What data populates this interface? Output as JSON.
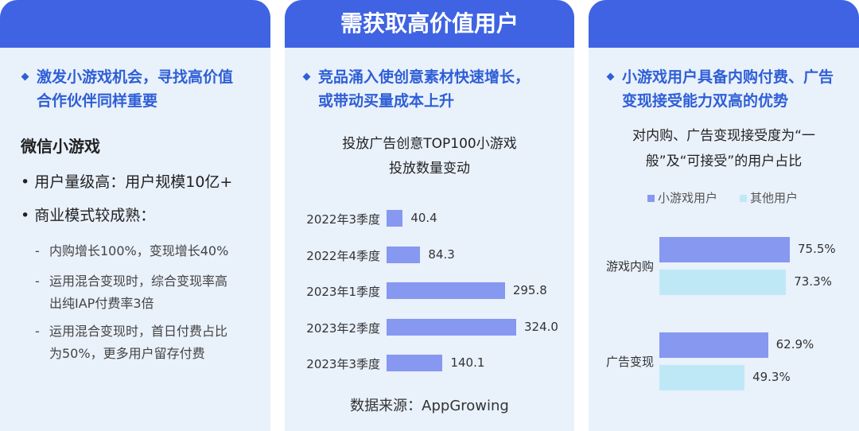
{
  "colors": {
    "header": "#3f63e3",
    "panel_bg": "#e9f1fb",
    "accent_text": "#2f5fd6",
    "bar_mini": "#8798f0",
    "bar_other": "#bfe8f7"
  },
  "left": {
    "highlight_line1": "激发小游戏机会，寻找高价值",
    "highlight_line2": "合作伙伴同样重要",
    "heading": "微信小游戏",
    "bullet1": "用户量级高：用户规模10亿+",
    "bullet2": "商业模式较成熟：",
    "sub1": "内购增长100%，变现增长40%",
    "sub2_line1": "运用混合变现时，综合变现率高",
    "sub2_line2": "出纯IAP付费率3倍",
    "sub3_line1": "运用混合变现时，首日付费占比",
    "sub3_line2": "为50%，更多用户留存付费"
  },
  "middle": {
    "header_title": "需获取高价值用户",
    "highlight_line1": "竞品涌入使创意素材快速增长，",
    "highlight_line2": "或带动买量成本上升",
    "chart_title_line1": "投放广告创意TOP100小游戏",
    "chart_title_line2": "投放数量变动",
    "source": "数据来源：AppGrowing"
  },
  "right": {
    "highlight_line1": "小游戏用户具备内购付费、广告",
    "highlight_line2": "变现接受能力双高的优势",
    "chart_title_line1": "对内购、广告变现接受度为“一",
    "chart_title_line2": "般”及“可接受”的用户占比"
  },
  "chart_data": [
    {
      "type": "bar",
      "orientation": "horizontal",
      "title": "投放广告创意TOP100小游戏投放数量变动",
      "categories": [
        "2022年3季度",
        "2022年4季度",
        "2023年1季度",
        "2023年2季度",
        "2023年3季度"
      ],
      "values": [
        40.4,
        84.3,
        295.8,
        324.0,
        140.1
      ],
      "value_labels": [
        "40.4",
        "84.3",
        "295.8",
        "324.0",
        "140.1"
      ],
      "xlim": [
        0,
        324
      ],
      "grid": false
    },
    {
      "type": "bar",
      "orientation": "horizontal",
      "title": "对内购、广告变现接受度为“一般”及“可接受”的用户占比",
      "categories": [
        "游戏内购",
        "广告变现"
      ],
      "series": [
        {
          "name": "小游戏用户",
          "values": [
            75.5,
            62.9
          ],
          "labels": [
            "75.5%",
            "62.9%"
          ]
        },
        {
          "name": "其他用户",
          "values": [
            73.3,
            49.3
          ],
          "labels": [
            "73.3%",
            "49.3%"
          ]
        }
      ],
      "xlim": [
        0,
        75.5
      ],
      "legend": "top",
      "grid": false
    }
  ]
}
